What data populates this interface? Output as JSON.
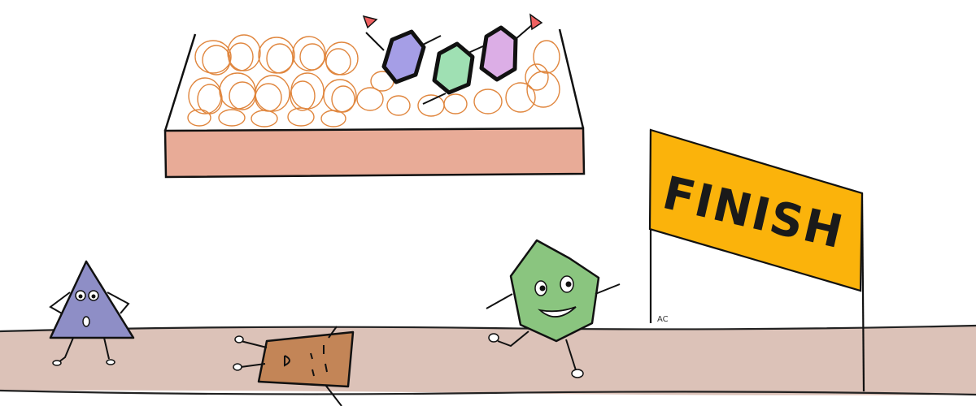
{
  "scene": {
    "finish_banner": {
      "label": "FINISH",
      "color": "#fbb30b"
    },
    "signature": "AC",
    "colors": {
      "track": "#dcc2b8",
      "bleacher_base": "#e8ab97",
      "crowd_scribble": "#e0863e",
      "triangle": "#8e8ec6",
      "rectangle": "#c38557",
      "hexagon_runner": "#8ac57f",
      "fan_purple": "#a59ee6",
      "fan_green": "#9fe0b3",
      "fan_pink": "#dcaee6",
      "pennant": "#ef6060"
    },
    "characters": [
      "triangle-character",
      "fallen-rectangle-character",
      "hexagon-runner-character"
    ]
  }
}
